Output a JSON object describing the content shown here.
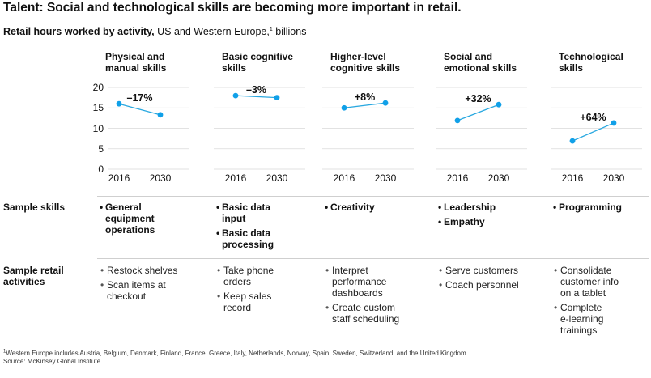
{
  "title": "Talent: Social and technological skills are becoming more important in retail.",
  "subtitle": {
    "bold": "Retail hours worked by activity,",
    "normal": " US and Western Europe,",
    "sup": "1",
    "tail": " billions"
  },
  "chart_data": [
    {
      "type": "line",
      "title": "Physical and\nmanual skills",
      "x": [
        "2016",
        "2030"
      ],
      "values": [
        16.0,
        13.3
      ],
      "change_label": "–17%",
      "ylim": [
        0,
        20
      ],
      "yticks": [
        "0",
        "5",
        "10",
        "15",
        "20"
      ],
      "grid": true
    },
    {
      "type": "line",
      "title": "Basic cognitive\nskills",
      "x": [
        "2016",
        "2030"
      ],
      "values": [
        18.0,
        17.5
      ],
      "change_label": "–3%",
      "ylim": [
        0,
        20
      ],
      "grid": true
    },
    {
      "type": "line",
      "title": "Higher-level\ncognitive skills",
      "x": [
        "2016",
        "2030"
      ],
      "values": [
        15.0,
        16.2
      ],
      "change_label": "+8%",
      "ylim": [
        0,
        20
      ],
      "grid": true
    },
    {
      "type": "line",
      "title": "Social and\nemotional skills",
      "x": [
        "2016",
        "2030"
      ],
      "values": [
        11.9,
        15.8
      ],
      "change_label": "+32%",
      "ylim": [
        0,
        20
      ],
      "grid": true
    },
    {
      "type": "line",
      "title": "Technological\nskills",
      "x": [
        "2016",
        "2030"
      ],
      "values": [
        6.9,
        11.3
      ],
      "change_label": "+64%",
      "ylim": [
        0,
        20
      ],
      "grid": true
    }
  ],
  "colors": {
    "line": "#29a8e0",
    "point": "#10a0e8",
    "grid": "#d9d9d9",
    "divider": "#cfcfcf"
  },
  "rows": {
    "skills_label": "Sample skills",
    "activities_label": "Sample retail\nactivities",
    "skills": [
      [
        "General\nequipment\noperations"
      ],
      [
        "Basic data\ninput",
        "Basic data\nprocessing"
      ],
      [
        "Creativity"
      ],
      [
        "Leadership",
        "Empathy"
      ],
      [
        "Programming"
      ]
    ],
    "activities": [
      [
        "Restock shelves",
        "Scan items at\ncheckout"
      ],
      [
        "Take phone\norders",
        "Keep sales\nrecord"
      ],
      [
        "Interpret\nperformance\ndashboards",
        "Create custom\nstaff scheduling"
      ],
      [
        "Serve customers",
        "Coach personnel"
      ],
      [
        "Consolidate\ncustomer info\non a tablet",
        "Complete\ne-learning\ntrainings"
      ]
    ]
  },
  "footnote": {
    "sup": "1",
    "text": "Western Europe includes Austria, Belgium, Denmark, Finland, France, Greece, Italy, Netherlands, Norway, Spain, Sweden, Switzerland, and the United Kingdom."
  },
  "source": "Source: McKinsey Global Institute"
}
